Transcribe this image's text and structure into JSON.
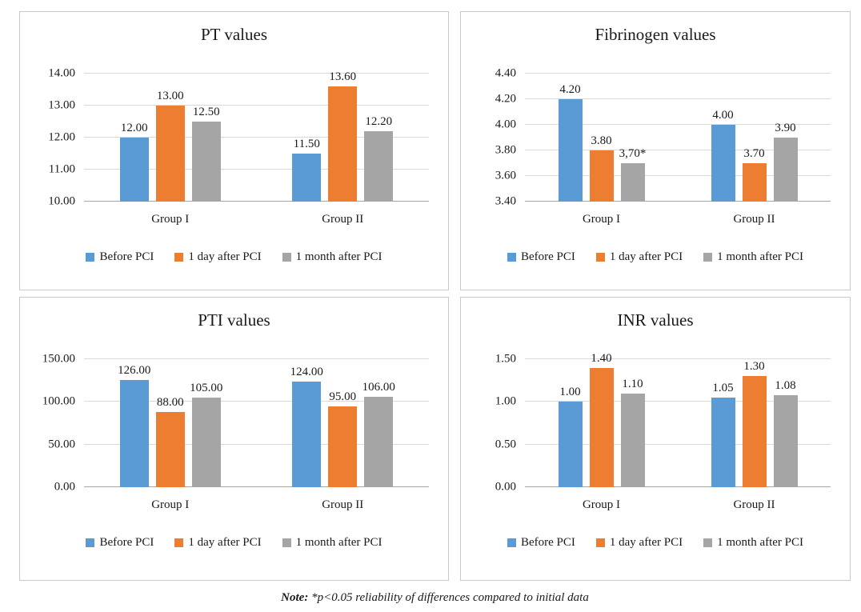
{
  "note": {
    "bold": "Note:",
    "rest": " *p<0.05 reliability of differences compared to initial data"
  },
  "chart_data": [
    {
      "id": "pt",
      "type": "bar",
      "title": "PT values",
      "categories": [
        "Group I",
        "Group II"
      ],
      "series": [
        {
          "key": "before-pci",
          "name": "Before PCI",
          "color": "#5B9BD5",
          "values": [
            12.0,
            11.5
          ],
          "labels": [
            "12.00",
            "11.50"
          ]
        },
        {
          "key": "1-day-after-pci",
          "name": "1 day after PCI",
          "color": "#ED7D31",
          "values": [
            13.0,
            13.6
          ],
          "labels": [
            "13.00",
            "13.60"
          ]
        },
        {
          "key": "1-month-after-pci",
          "name": "1 month after PCI",
          "color": "#A5A5A5",
          "values": [
            12.5,
            12.2
          ],
          "labels": [
            "12.50",
            "12.20"
          ]
        }
      ],
      "ylim": [
        10.0,
        14.0
      ],
      "yticks": [
        10.0,
        11.0,
        12.0,
        13.0,
        14.0
      ],
      "ytick_labels": [
        "10.00",
        "11.00",
        "12.00",
        "13.00",
        "14.00"
      ],
      "grid": true,
      "legend_position": "bottom"
    },
    {
      "id": "fibrinogen",
      "type": "bar",
      "title": "Fibrinogen values",
      "categories": [
        "Group I",
        "Group II"
      ],
      "series": [
        {
          "key": "before-pci",
          "name": "Before PCI",
          "color": "#5B9BD5",
          "values": [
            4.2,
            4.0
          ],
          "labels": [
            "4.20",
            "4.00"
          ]
        },
        {
          "key": "1-day-after-pci",
          "name": "1 day after PCI",
          "color": "#ED7D31",
          "values": [
            3.8,
            3.7
          ],
          "labels": [
            "3.80",
            "3.70"
          ]
        },
        {
          "key": "1-month-after-pci",
          "name": "1 month after PCI",
          "color": "#A5A5A5",
          "values": [
            3.7,
            3.9
          ],
          "labels": [
            "3,70*",
            "3.90"
          ]
        }
      ],
      "ylim": [
        3.4,
        4.4
      ],
      "yticks": [
        3.4,
        3.6,
        3.8,
        4.0,
        4.2,
        4.4
      ],
      "ytick_labels": [
        "3.40",
        "3.60",
        "3.80",
        "4.00",
        "4.20",
        "4.40"
      ],
      "grid": true,
      "legend_position": "bottom"
    },
    {
      "id": "pti",
      "type": "bar",
      "title": "PTI values",
      "categories": [
        "Group I",
        "Group II"
      ],
      "series": [
        {
          "key": "before-pci",
          "name": "Before PCI",
          "color": "#5B9BD5",
          "values": [
            126.0,
            124.0
          ],
          "labels": [
            "126.00",
            "124.00"
          ]
        },
        {
          "key": "1-day-after-pci",
          "name": "1 day after PCI",
          "color": "#ED7D31",
          "values": [
            88.0,
            95.0
          ],
          "labels": [
            "88.00",
            "95.00"
          ]
        },
        {
          "key": "1-month-after-pci",
          "name": "1 month after PCI",
          "color": "#A5A5A5",
          "values": [
            105.0,
            106.0
          ],
          "labels": [
            "105.00",
            "106.00"
          ]
        }
      ],
      "ylim": [
        0.0,
        150.0
      ],
      "yticks": [
        0.0,
        50.0,
        100.0,
        150.0
      ],
      "ytick_labels": [
        "0.00",
        "50.00",
        "100.00",
        "150.00"
      ],
      "grid": true,
      "legend_position": "bottom"
    },
    {
      "id": "inr",
      "type": "bar",
      "title": "INR values",
      "categories": [
        "Group I",
        "Group II"
      ],
      "series": [
        {
          "key": "before-pci",
          "name": "Before PCI",
          "color": "#5B9BD5",
          "values": [
            1.0,
            1.05
          ],
          "labels": [
            "1.00",
            "1.05"
          ]
        },
        {
          "key": "1-day-after-pci",
          "name": "1 day after PCI",
          "color": "#ED7D31",
          "values": [
            1.4,
            1.3
          ],
          "labels": [
            "1.40",
            "1.30"
          ]
        },
        {
          "key": "1-month-after-pci",
          "name": "1 month after PCI",
          "color": "#A5A5A5",
          "values": [
            1.1,
            1.08
          ],
          "labels": [
            "1.10",
            "1.08"
          ]
        }
      ],
      "ylim": [
        0.0,
        1.5
      ],
      "yticks": [
        0.0,
        0.5,
        1.0,
        1.5
      ],
      "ytick_labels": [
        "0.00",
        "0.50",
        "1.00",
        "1.50"
      ],
      "grid": true,
      "legend_position": "bottom"
    }
  ]
}
